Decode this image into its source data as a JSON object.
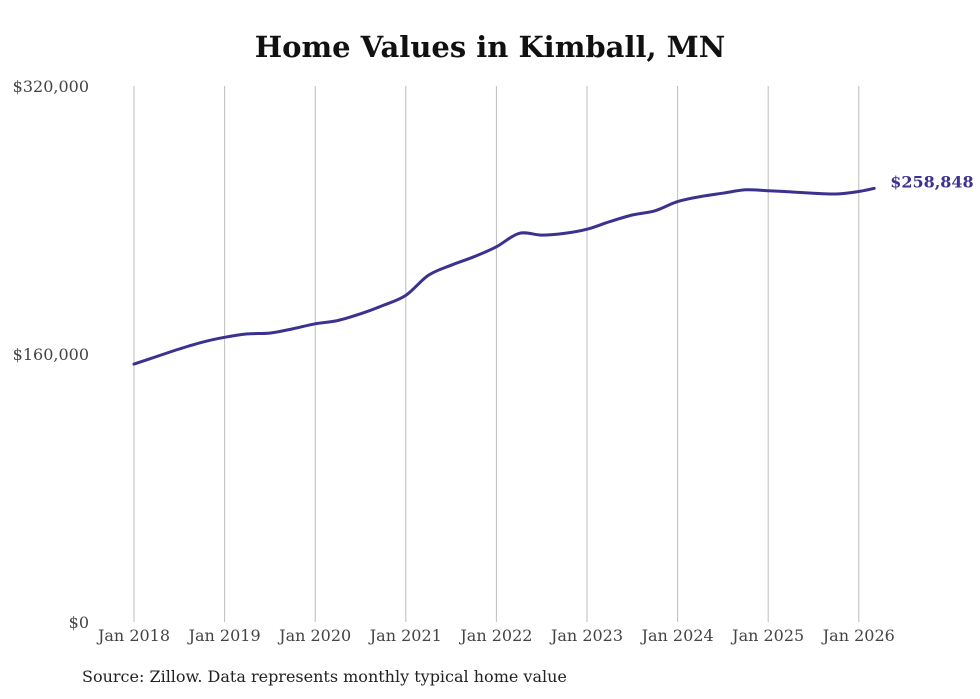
{
  "colors": {
    "line": "#3b318f",
    "grid": "#bdbdbd",
    "axis_text": "#444444"
  },
  "chart_data": {
    "type": "line",
    "title": "Home Values in Kimball, MN",
    "xlabel": "",
    "ylabel": "",
    "ylim": [
      0,
      320000
    ],
    "y_ticks": [
      {
        "value": 0,
        "label": "$0"
      },
      {
        "value": 160000,
        "label": "$160,000"
      },
      {
        "value": 320000,
        "label": "$320,000"
      }
    ],
    "x_ticks": [
      {
        "value": 2018.0,
        "label": "Jan 2018"
      },
      {
        "value": 2019.0,
        "label": "Jan 2019"
      },
      {
        "value": 2020.0,
        "label": "Jan 2020"
      },
      {
        "value": 2021.0,
        "label": "Jan 2021"
      },
      {
        "value": 2022.0,
        "label": "Jan 2022"
      },
      {
        "value": 2023.0,
        "label": "Jan 2023"
      },
      {
        "value": 2024.0,
        "label": "Jan 2024"
      },
      {
        "value": 2025.0,
        "label": "Jan 2025"
      },
      {
        "value": 2026.0,
        "label": "Jan 2026"
      }
    ],
    "xlim": [
      2017.6,
      2026.7
    ],
    "grid": "vertical",
    "series": [
      {
        "name": "Typical home value",
        "x": [
          2018.0,
          2018.25,
          2018.5,
          2018.75,
          2019.0,
          2019.25,
          2019.5,
          2019.75,
          2020.0,
          2020.25,
          2020.5,
          2020.75,
          2021.0,
          2021.25,
          2021.5,
          2021.75,
          2022.0,
          2022.25,
          2022.5,
          2022.75,
          2023.0,
          2023.25,
          2023.5,
          2023.75,
          2024.0,
          2024.25,
          2024.5,
          2024.75,
          2025.0,
          2025.25,
          2025.5,
          2025.75,
          2026.0,
          2026.17
        ],
        "values": [
          154000,
          158500,
          163000,
          167000,
          170000,
          172000,
          172500,
          175000,
          178000,
          180000,
          184000,
          189000,
          195000,
          207000,
          213000,
          218000,
          224000,
          232000,
          231000,
          232000,
          234500,
          239000,
          243000,
          245500,
          251000,
          254000,
          256000,
          258000,
          257500,
          256800,
          256000,
          255500,
          257000,
          258848
        ]
      }
    ],
    "end_label": "$258,848"
  },
  "footer": {
    "source": "Source: Zillow. Data represents monthly typical home value"
  }
}
